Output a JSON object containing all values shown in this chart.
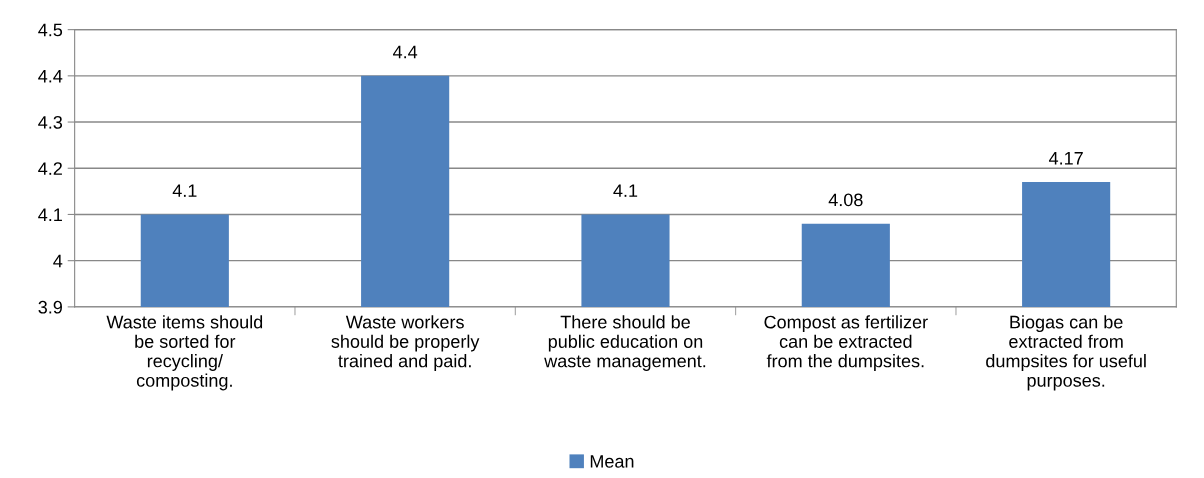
{
  "chart_data": {
    "type": "bar",
    "categories": [
      "Waste items should\nbe sorted for\nrecycling/\ncomposting.",
      "Waste workers\nshould be properly\ntrained and paid.",
      "There should be\npublic education on\nwaste management.",
      "Compost as fertilizer\ncan be extracted\nfrom the dumpsites.",
      "Biogas can be\nextracted from\ndumpsites for useful\npurposes."
    ],
    "series": [
      {
        "name": "Mean",
        "color": "#4f81bd",
        "values": [
          4.1,
          4.4,
          4.1,
          4.08,
          4.17
        ]
      }
    ],
    "ylim": [
      3.9,
      4.5
    ],
    "yticks": [
      3.9,
      4,
      4.1,
      4.2,
      4.3,
      4.4,
      4.5
    ],
    "grid": "y",
    "legend": "bottom",
    "data_labels": true
  }
}
